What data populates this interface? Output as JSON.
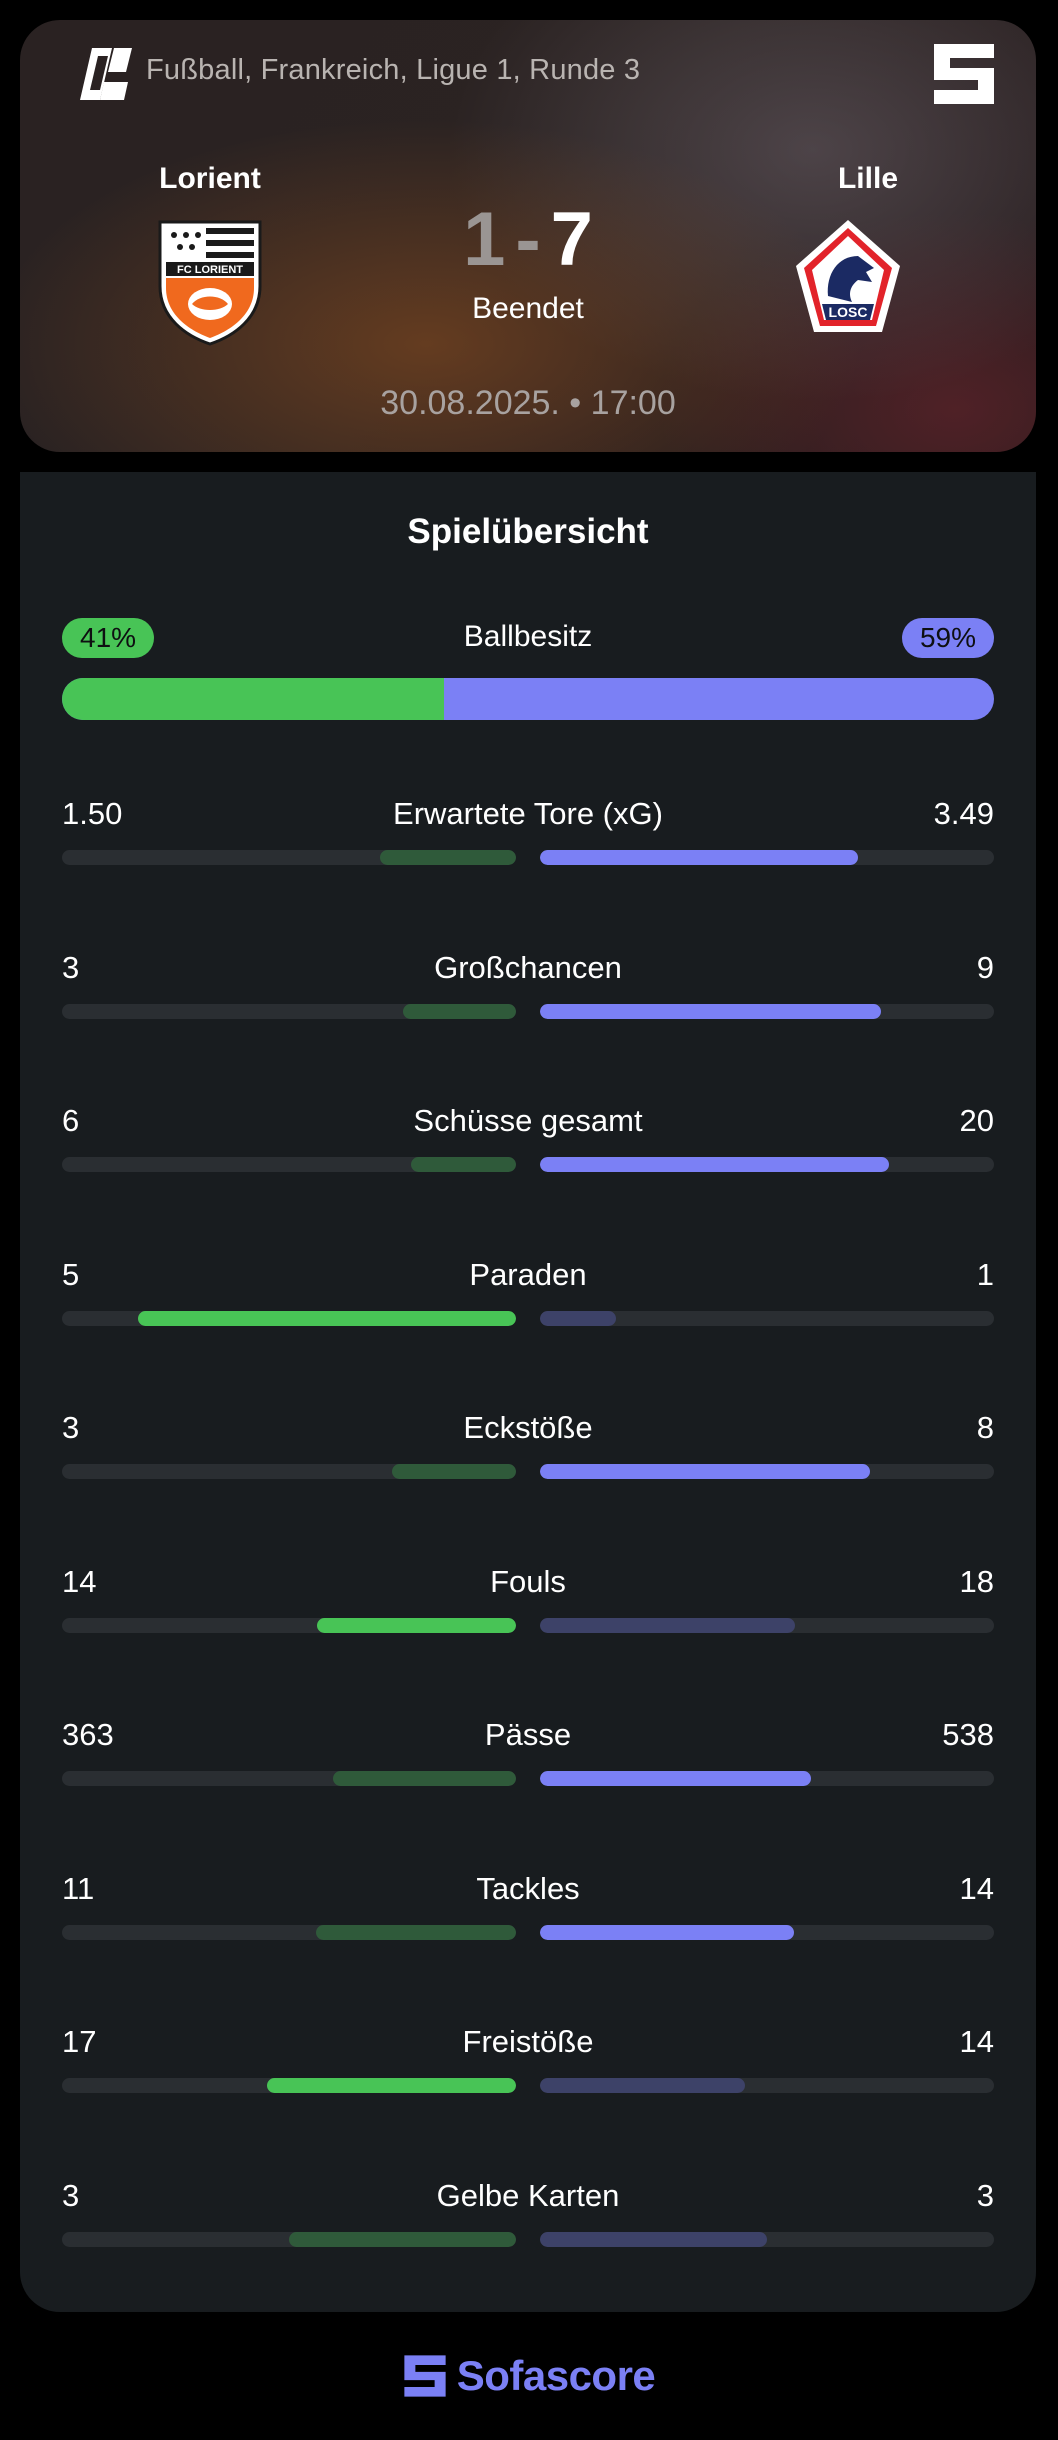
{
  "header": {
    "breadcrumb": "Fußball, Frankreich, Ligue 1, Runde 3",
    "league_icon": "ligue-1-logo",
    "brand_icon": "sofascore-icon",
    "home_team": {
      "name": "Lorient",
      "crest": "fc-lorient-crest"
    },
    "away_team": {
      "name": "Lille",
      "crest": "losc-crest"
    },
    "home_score": "1",
    "score_separator": "-",
    "away_score": "7",
    "status": "Beendet",
    "date_time": "30.08.2025. • 17:00"
  },
  "stats": {
    "title": "Spielübersicht",
    "possession": {
      "label": "Ballbesitz",
      "home": "41%",
      "away": "59%",
      "home_fraction": 0.41
    },
    "rows": [
      {
        "label": "Erwartete Tore (xG)",
        "home": "1.50",
        "away": "3.49",
        "home_value": 1.5,
        "away_value": 3.49
      },
      {
        "label": "Großchancen",
        "home": "3",
        "away": "9",
        "home_value": 3,
        "away_value": 9
      },
      {
        "label": "Schüsse gesamt",
        "home": "6",
        "away": "20",
        "home_value": 6,
        "away_value": 20
      },
      {
        "label": "Paraden",
        "home": "5",
        "away": "1",
        "home_value": 5,
        "away_value": 1
      },
      {
        "label": "Eckstöße",
        "home": "3",
        "away": "8",
        "home_value": 3,
        "away_value": 8
      },
      {
        "label": "Fouls",
        "home": "14",
        "away": "18",
        "home_value": 14,
        "away_value": 18,
        "winner": "home"
      },
      {
        "label": "Pässe",
        "home": "363",
        "away": "538",
        "home_value": 363,
        "away_value": 538
      },
      {
        "label": "Tackles",
        "home": "11",
        "away": "14",
        "home_value": 11,
        "away_value": 14
      },
      {
        "label": "Freistöße",
        "home": "17",
        "away": "14",
        "home_value": 17,
        "away_value": 14
      },
      {
        "label": "Gelbe Karten",
        "home": "3",
        "away": "3",
        "home_value": 3,
        "away_value": 3,
        "winner": "none"
      }
    ]
  },
  "footer": {
    "brand": "Sofascore",
    "icon": "sofascore-icon"
  },
  "colors": {
    "home": "#48c456",
    "home_muted": "#2f5a3a",
    "away": "#7b80f5",
    "away_muted": "#3d4268",
    "card_bg": "#181c1f",
    "track_bg": "#2a2e32"
  }
}
